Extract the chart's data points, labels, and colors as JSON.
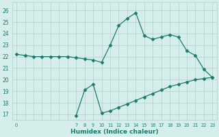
{
  "line1_x": [
    0,
    1,
    2,
    3,
    4,
    5,
    6,
    7,
    8,
    9,
    10,
    11,
    12,
    13,
    14,
    15,
    16,
    17,
    18,
    19,
    20,
    21,
    22,
    23
  ],
  "line1_y": [
    22.2,
    22.1,
    22.0,
    22.0,
    22.0,
    22.0,
    22.0,
    21.9,
    21.8,
    21.7,
    21.5,
    23.0,
    24.7,
    25.3,
    25.8,
    23.8,
    23.5,
    23.7,
    23.9,
    23.7,
    22.5,
    22.1,
    20.9,
    20.2
  ],
  "line2_x": [
    7,
    8,
    9,
    10,
    11,
    12,
    13,
    14,
    15,
    16,
    17,
    18,
    19,
    20,
    21,
    22,
    23
  ],
  "line2_y": [
    16.9,
    19.1,
    19.6,
    17.1,
    17.3,
    17.6,
    17.9,
    18.2,
    18.5,
    18.8,
    19.1,
    19.4,
    19.6,
    19.8,
    20.0,
    20.1,
    20.2
  ],
  "line_color": "#1a7a6e",
  "bg_color": "#d5eeec",
  "grid_color": "#b8d4d0",
  "xlabel": "Humidex (Indice chaleur)",
  "xtick_labels": [
    "0",
    "",
    "",
    "",
    "",
    "",
    "",
    "7",
    "8",
    "9",
    "10",
    "11",
    "12",
    "13",
    "14",
    "15",
    "16",
    "17",
    "18",
    "19",
    "20",
    "21",
    "22",
    "23"
  ],
  "xtick_positions": [
    0,
    1,
    2,
    3,
    4,
    5,
    6,
    7,
    8,
    9,
    10,
    11,
    12,
    13,
    14,
    15,
    16,
    17,
    18,
    19,
    20,
    21,
    22,
    23
  ],
  "yticks": [
    17,
    18,
    19,
    20,
    21,
    22,
    23,
    24,
    25,
    26
  ],
  "ylim": [
    16.5,
    26.7
  ],
  "xlim": [
    -0.5,
    23.5
  ],
  "marker": "D",
  "markersize": 2.5,
  "linewidth": 0.9
}
